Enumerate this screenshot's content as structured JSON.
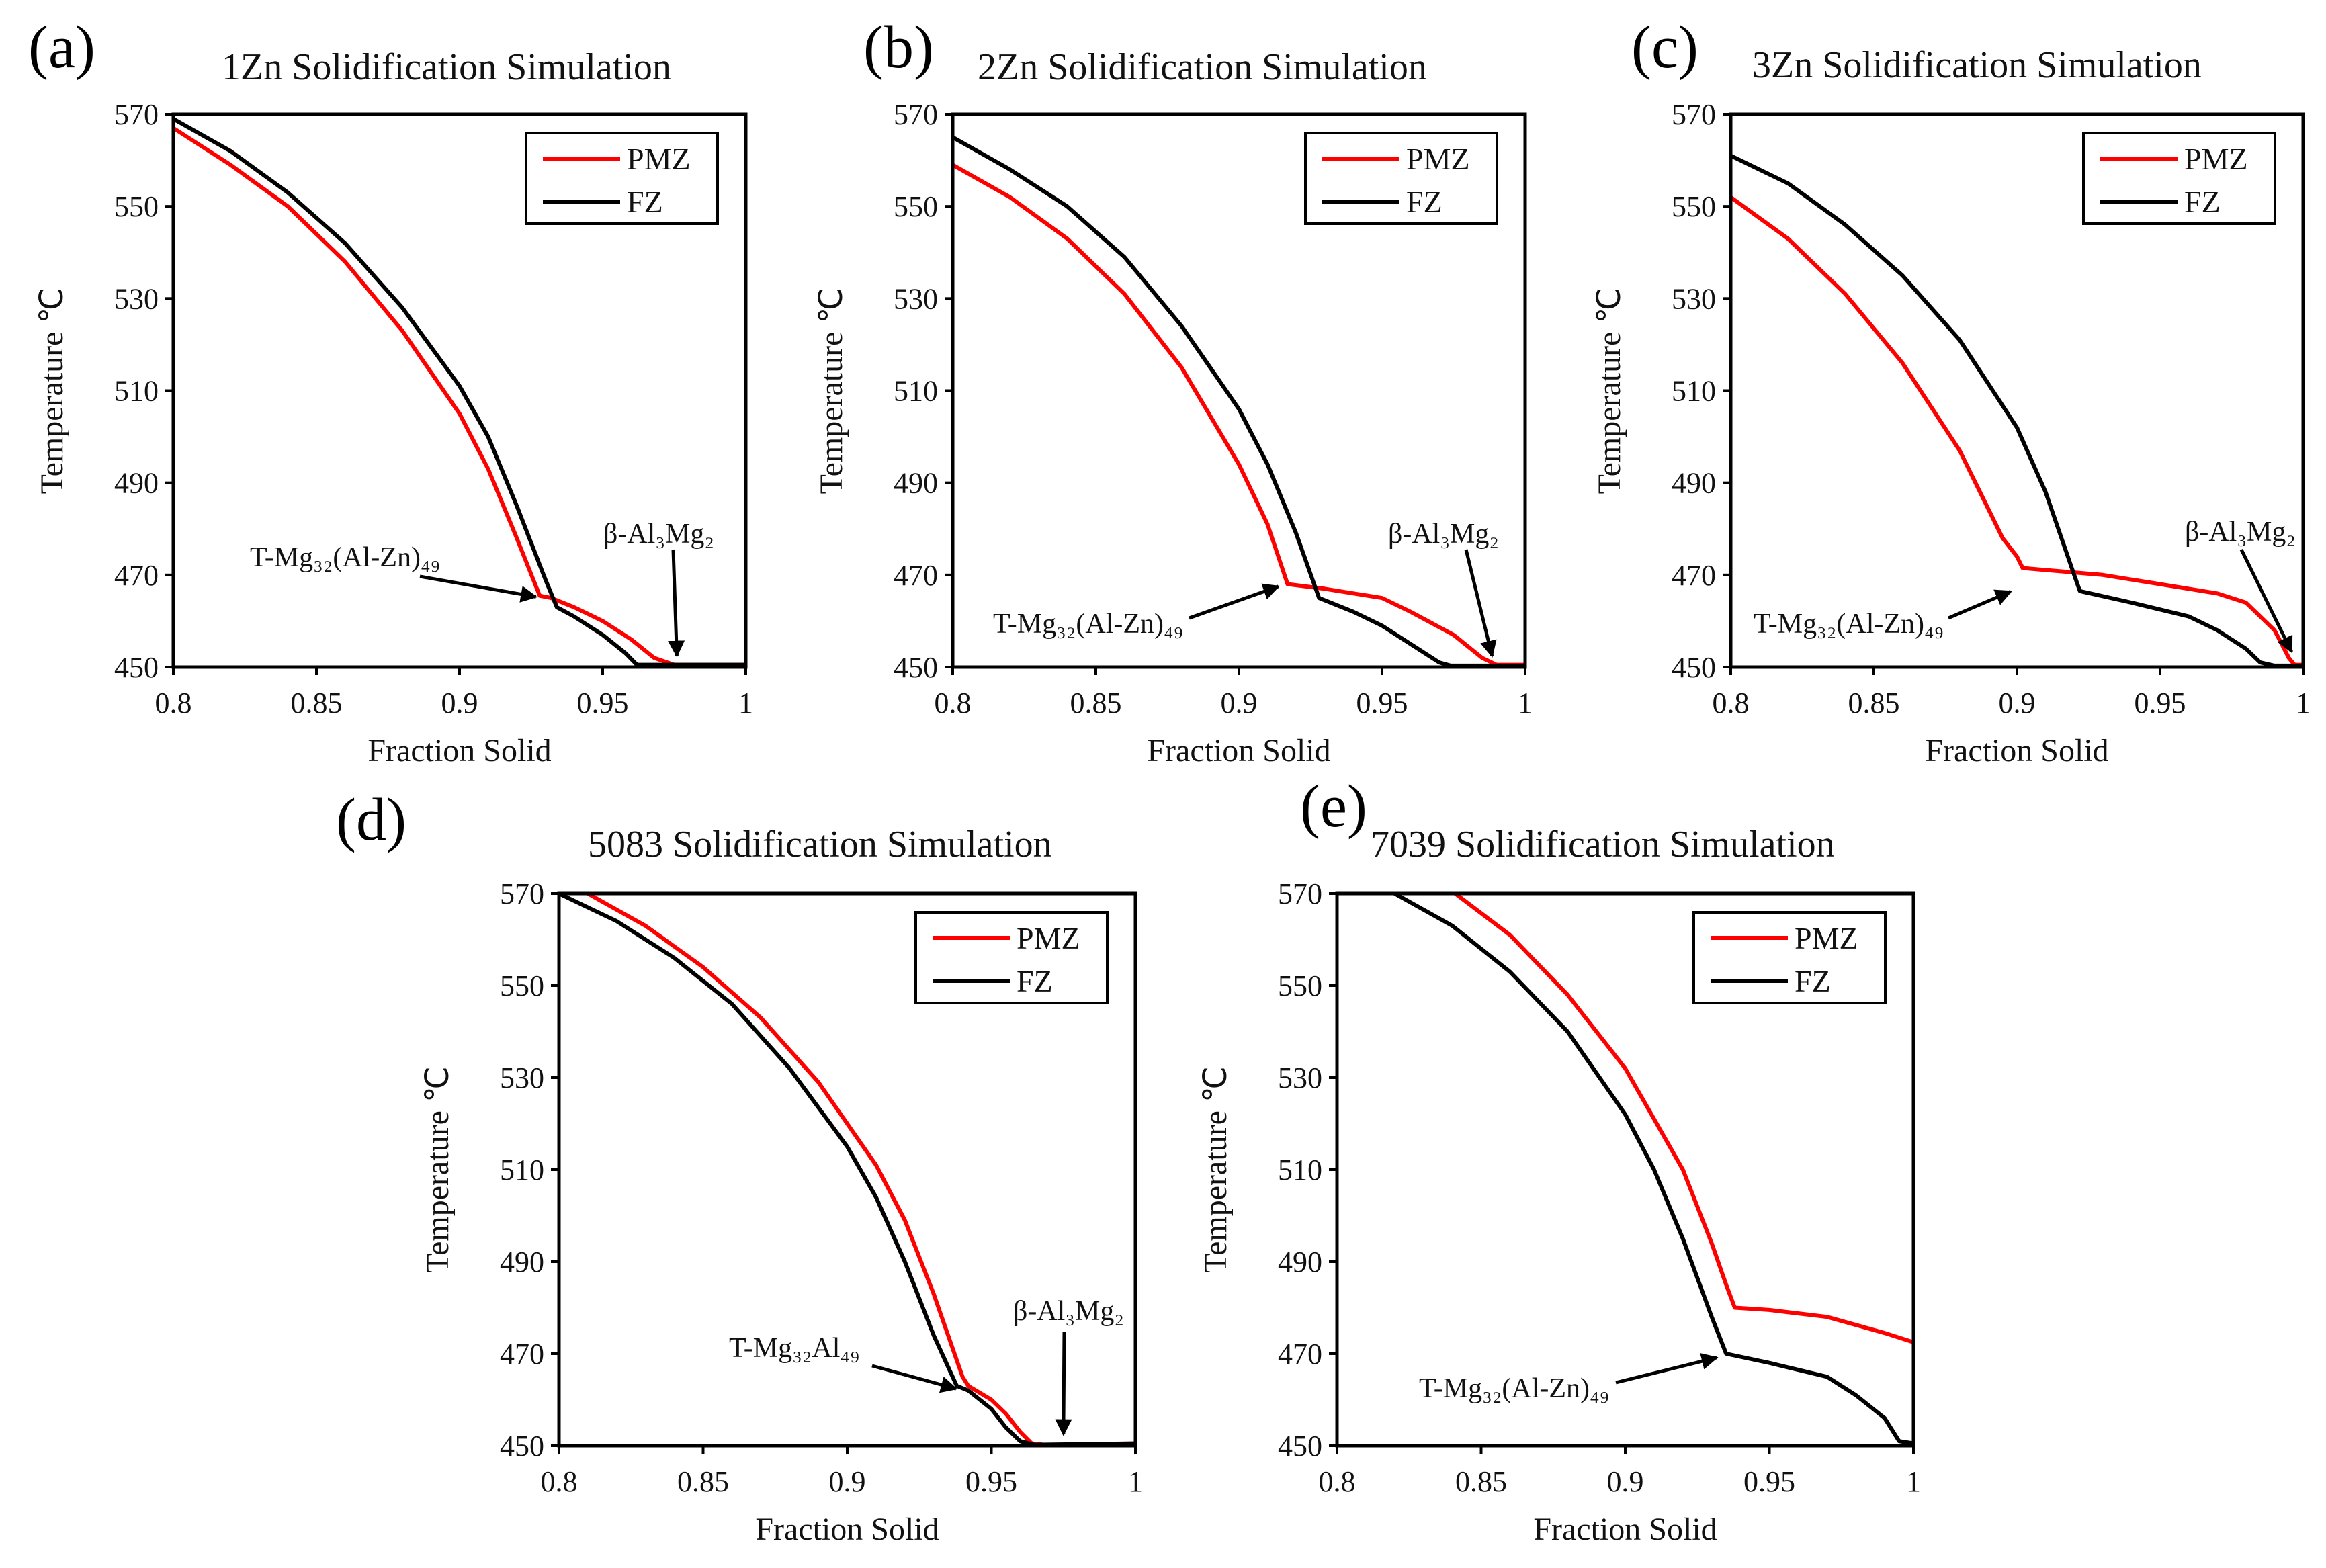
{
  "colors": {
    "PMZ": "#ff0000",
    "FZ": "#000000"
  },
  "chart_data": [
    {
      "id": "a",
      "type": "line",
      "panel_label": "(a)",
      "title": "1Zn Solidification Simulation",
      "xlabel": "Fraction Solid",
      "ylabel": "Temperature ℃",
      "xlim": [
        0.8,
        1.0
      ],
      "ylim": [
        450,
        570
      ],
      "xticks": [
        "0.8",
        "0.85",
        "0.9",
        "0.95",
        "1"
      ],
      "yticks": [
        "450",
        "470",
        "490",
        "510",
        "530",
        "550",
        "570"
      ],
      "legend_position": "top-right",
      "series": [
        {
          "name": "PMZ",
          "color": "#ff0000",
          "points": [
            [
              0.8,
              567
            ],
            [
              0.82,
              559
            ],
            [
              0.84,
              550
            ],
            [
              0.86,
              538
            ],
            [
              0.88,
              523
            ],
            [
              0.9,
              505
            ],
            [
              0.91,
              493
            ],
            [
              0.92,
              478
            ],
            [
              0.928,
              465.5
            ],
            [
              0.932,
              465
            ],
            [
              0.94,
              463
            ],
            [
              0.95,
              460
            ],
            [
              0.96,
              456
            ],
            [
              0.968,
              452
            ],
            [
              0.975,
              450.5
            ],
            [
              1.0,
              450.5
            ]
          ]
        },
        {
          "name": "FZ",
          "color": "#000000",
          "points": [
            [
              0.8,
              569
            ],
            [
              0.82,
              562
            ],
            [
              0.84,
              553
            ],
            [
              0.86,
              542
            ],
            [
              0.88,
              528
            ],
            [
              0.9,
              511
            ],
            [
              0.91,
              500
            ],
            [
              0.92,
              485
            ],
            [
              0.93,
              469
            ],
            [
              0.934,
              463
            ],
            [
              0.94,
              461
            ],
            [
              0.95,
              457
            ],
            [
              0.958,
              453
            ],
            [
              0.962,
              450.5
            ],
            [
              1.0,
              450.5
            ]
          ]
        }
      ],
      "annotations": [
        {
          "text": "T-Mg₃₂(Al-Zn)₄₉",
          "target": [
            0.929,
            465
          ]
        },
        {
          "text": "β-Al₃Mg₂",
          "target": [
            0.976,
            451
          ]
        }
      ]
    },
    {
      "id": "b",
      "type": "line",
      "panel_label": "(b)",
      "title": "2Zn Solidification Simulation",
      "xlabel": "Fraction Solid",
      "ylabel": "Temperature ℃",
      "xlim": [
        0.8,
        1.0
      ],
      "ylim": [
        450,
        570
      ],
      "xticks": [
        "0.8",
        "0.85",
        "0.9",
        "0.95",
        "1"
      ],
      "yticks": [
        "450",
        "470",
        "490",
        "510",
        "530",
        "550",
        "570"
      ],
      "legend_position": "top-right",
      "series": [
        {
          "name": "PMZ",
          "color": "#ff0000",
          "points": [
            [
              0.8,
              559
            ],
            [
              0.82,
              552
            ],
            [
              0.84,
              543
            ],
            [
              0.86,
              531
            ],
            [
              0.88,
              515
            ],
            [
              0.9,
              494
            ],
            [
              0.91,
              481
            ],
            [
              0.917,
              468
            ],
            [
              0.93,
              467
            ],
            [
              0.95,
              465
            ],
            [
              0.96,
              462
            ],
            [
              0.975,
              457
            ],
            [
              0.985,
              452
            ],
            [
              0.99,
              450.5
            ],
            [
              1.0,
              450.5
            ]
          ]
        },
        {
          "name": "FZ",
          "color": "#000000",
          "points": [
            [
              0.8,
              565
            ],
            [
              0.82,
              558
            ],
            [
              0.84,
              550
            ],
            [
              0.86,
              539
            ],
            [
              0.88,
              524
            ],
            [
              0.9,
              506
            ],
            [
              0.91,
              494
            ],
            [
              0.92,
              479
            ],
            [
              0.928,
              465
            ],
            [
              0.94,
              462
            ],
            [
              0.95,
              459
            ],
            [
              0.96,
              455
            ],
            [
              0.97,
              451
            ],
            [
              0.974,
              450.3
            ],
            [
              1.0,
              450.3
            ]
          ]
        }
      ],
      "annotations": [
        {
          "text": "T-Mg₃₂(Al-Zn)₄₉",
          "target": [
            0.916,
            468
          ]
        },
        {
          "text": "β-Al₃Mg₂",
          "target": [
            0.989,
            451
          ]
        }
      ]
    },
    {
      "id": "c",
      "type": "line",
      "panel_label": "(c)",
      "title": "3Zn Solidification Simulation",
      "xlabel": "Fraction Solid",
      "ylabel": "Temperature ℃",
      "xlim": [
        0.8,
        1.0
      ],
      "ylim": [
        450,
        570
      ],
      "xticks": [
        "0.8",
        "0.85",
        "0.9",
        "0.95",
        "1"
      ],
      "yticks": [
        "450",
        "470",
        "490",
        "510",
        "530",
        "550",
        "570"
      ],
      "legend_position": "top-right",
      "series": [
        {
          "name": "PMZ",
          "color": "#ff0000",
          "points": [
            [
              0.8,
              552
            ],
            [
              0.82,
              543
            ],
            [
              0.84,
              531
            ],
            [
              0.86,
              516
            ],
            [
              0.88,
              497
            ],
            [
              0.895,
              478
            ],
            [
              0.9,
              474
            ],
            [
              0.902,
              471.5
            ],
            [
              0.93,
              470
            ],
            [
              0.95,
              468
            ],
            [
              0.97,
              466
            ],
            [
              0.98,
              464
            ],
            [
              0.99,
              458
            ],
            [
              0.995,
              452
            ],
            [
              0.997,
              450.5
            ],
            [
              1.0,
              450.5
            ]
          ]
        },
        {
          "name": "FZ",
          "color": "#000000",
          "points": [
            [
              0.8,
              561
            ],
            [
              0.82,
              555
            ],
            [
              0.84,
              546
            ],
            [
              0.86,
              535
            ],
            [
              0.88,
              521
            ],
            [
              0.9,
              502
            ],
            [
              0.91,
              488
            ],
            [
              0.92,
              470
            ],
            [
              0.922,
              466.5
            ],
            [
              0.94,
              464
            ],
            [
              0.96,
              461
            ],
            [
              0.97,
              458
            ],
            [
              0.98,
              454
            ],
            [
              0.985,
              451
            ],
            [
              0.99,
              450.3
            ],
            [
              1.0,
              450.3
            ]
          ]
        }
      ],
      "annotations": [
        {
          "text": "T-Mg₃₂(Al-Zn)₄₉",
          "target": [
            0.9,
            467
          ]
        },
        {
          "text": "β-Al₃Mg₂",
          "target": [
            0.997,
            452
          ]
        }
      ]
    },
    {
      "id": "d",
      "type": "line",
      "panel_label": "(d)",
      "title": "5083 Solidification Simulation",
      "xlabel": "Fraction Solid",
      "ylabel": "Temperature ℃",
      "xlim": [
        0.8,
        1.0
      ],
      "ylim": [
        450,
        570
      ],
      "xticks": [
        "0.8",
        "0.85",
        "0.9",
        "0.95",
        "1"
      ],
      "yticks": [
        "450",
        "470",
        "490",
        "510",
        "530",
        "550",
        "570"
      ],
      "legend_position": "top-right",
      "series": [
        {
          "name": "PMZ",
          "color": "#ff0000",
          "points": [
            [
              0.81,
              570
            ],
            [
              0.83,
              563
            ],
            [
              0.85,
              554
            ],
            [
              0.87,
              543
            ],
            [
              0.89,
              529
            ],
            [
              0.91,
              511
            ],
            [
              0.92,
              499
            ],
            [
              0.93,
              483
            ],
            [
              0.94,
              465
            ],
            [
              0.942,
              463
            ],
            [
              0.95,
              460
            ],
            [
              0.955,
              457
            ],
            [
              0.96,
              453
            ],
            [
              0.964,
              450.5
            ],
            [
              0.97,
              450.1
            ],
            [
              1.0,
              450.5
            ]
          ]
        },
        {
          "name": "FZ",
          "color": "#000000",
          "points": [
            [
              0.8,
              570
            ],
            [
              0.82,
              564
            ],
            [
              0.84,
              556
            ],
            [
              0.86,
              546
            ],
            [
              0.88,
              532
            ],
            [
              0.9,
              515
            ],
            [
              0.91,
              504
            ],
            [
              0.92,
              490
            ],
            [
              0.93,
              474
            ],
            [
              0.938,
              463
            ],
            [
              0.942,
              462
            ],
            [
              0.95,
              458
            ],
            [
              0.955,
              454
            ],
            [
              0.96,
              451
            ],
            [
              0.965,
              450.2
            ],
            [
              1.0,
              450.5
            ]
          ]
        }
      ],
      "annotations": [
        {
          "text": "T-Mg₃₂Al₄₉",
          "target": [
            0.94,
            462
          ]
        },
        {
          "text": "β-Al₃Mg₂",
          "target": [
            0.975,
            451
          ]
        }
      ]
    },
    {
      "id": "e",
      "type": "line",
      "panel_label": "(e)",
      "title": "7039 Solidification Simulation",
      "xlabel": "Fraction Solid",
      "ylabel": "Temperature ℃",
      "xlim": [
        0.8,
        1.0
      ],
      "ylim": [
        450,
        570
      ],
      "xticks": [
        "0.8",
        "0.85",
        "0.9",
        "0.95",
        "1"
      ],
      "yticks": [
        "450",
        "470",
        "490",
        "510",
        "530",
        "550",
        "570"
      ],
      "legend_position": "top-right",
      "series": [
        {
          "name": "PMZ",
          "color": "#ff0000",
          "points": [
            [
              0.841,
              570
            ],
            [
              0.86,
              561
            ],
            [
              0.88,
              548
            ],
            [
              0.9,
              532
            ],
            [
              0.92,
              510
            ],
            [
              0.93,
              494
            ],
            [
              0.935,
              485
            ],
            [
              0.938,
              480
            ],
            [
              0.95,
              479.5
            ],
            [
              0.97,
              478
            ],
            [
              0.99,
              474.5
            ],
            [
              1.0,
              472.5
            ]
          ]
        },
        {
          "name": "FZ",
          "color": "#000000",
          "points": [
            [
              0.82,
              570
            ],
            [
              0.84,
              563
            ],
            [
              0.86,
              553
            ],
            [
              0.88,
              540
            ],
            [
              0.9,
              522
            ],
            [
              0.91,
              510
            ],
            [
              0.92,
              495
            ],
            [
              0.93,
              478
            ],
            [
              0.935,
              470
            ],
            [
              0.95,
              468
            ],
            [
              0.97,
              465
            ],
            [
              0.98,
              461
            ],
            [
              0.99,
              456
            ],
            [
              0.995,
              451
            ],
            [
              1.0,
              450.5
            ]
          ]
        }
      ],
      "annotations": [
        {
          "text": "T-Mg₃₂(Al-Zn)₄₉",
          "target": [
            0.934,
            469.5
          ]
        }
      ]
    }
  ]
}
